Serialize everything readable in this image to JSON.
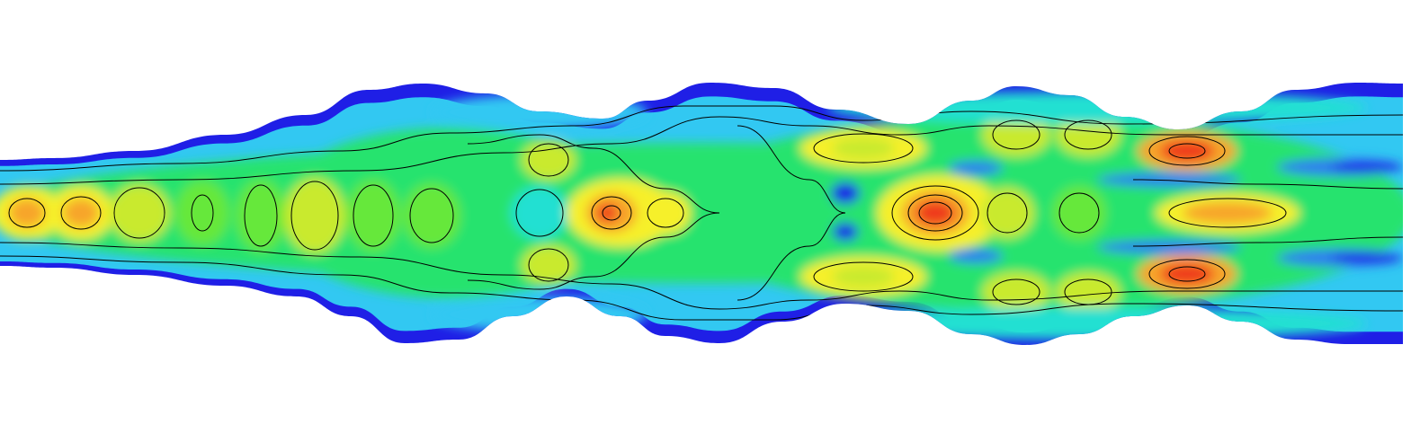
{
  "figure": {
    "kind": "filled contour plot of a scalar field inside a wavy channel",
    "colormap": [
      "#1f1fe6",
      "#2f7bf0",
      "#32c8f2",
      "#22e0d2",
      "#27e36e",
      "#66e83a",
      "#c9ea2d",
      "#f6f02a",
      "#f7a52a",
      "#ef3b1a"
    ],
    "background": "#ffffff",
    "contour_line_color": "#000000",
    "wall_color": "#1f1fe6"
  }
}
